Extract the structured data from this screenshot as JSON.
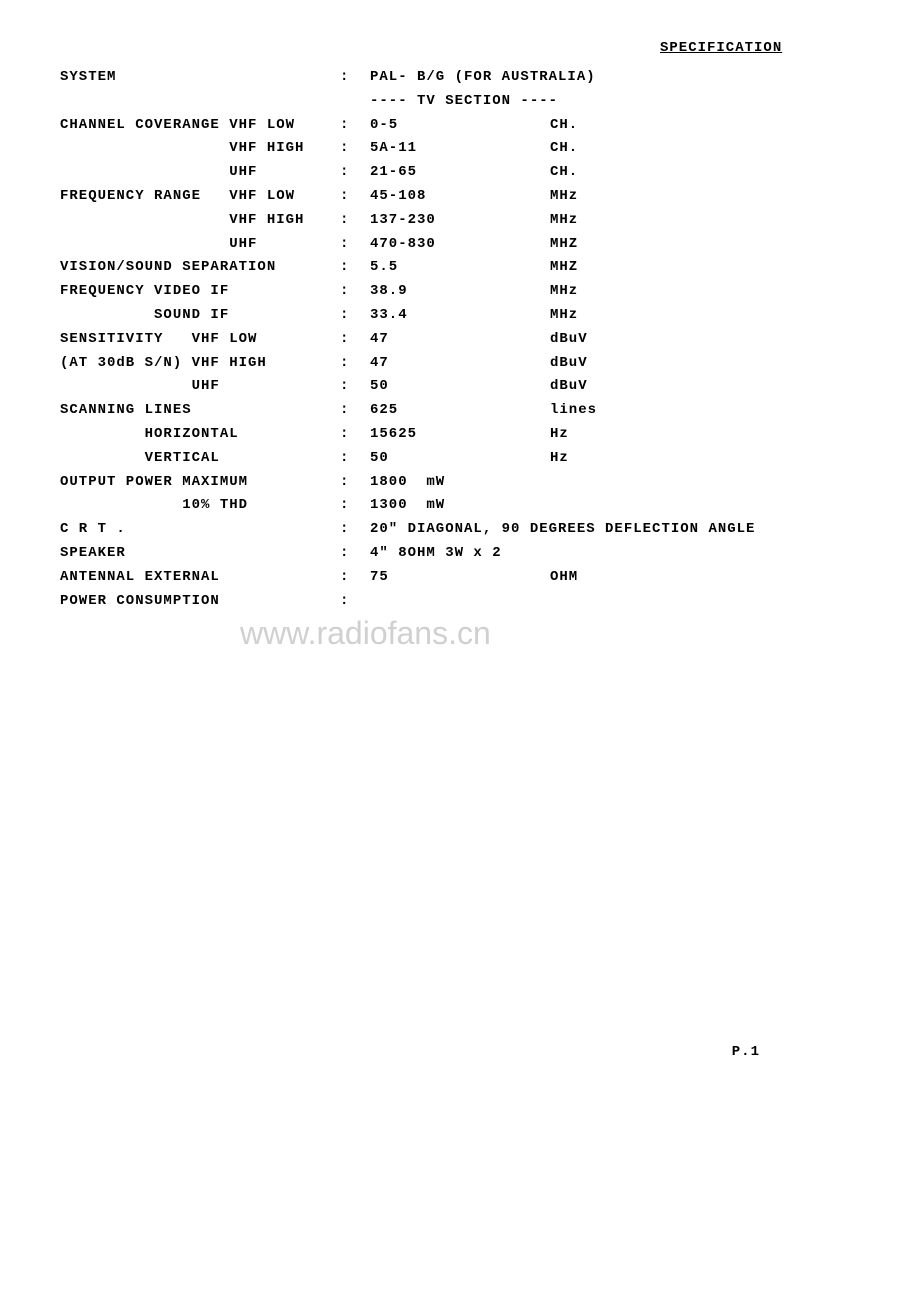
{
  "title": "SPECIFICATION",
  "section_header": "---- TV SECTION ----",
  "rows": [
    {
      "label": "SYSTEM",
      "value": "PAL- B/G (FOR AUSTRALIA)",
      "unit": ""
    },
    {
      "label": "CHANNEL COVERANGE VHF LOW",
      "value": "0-5",
      "unit": "CH."
    },
    {
      "label": "                  VHF HIGH",
      "value": "5A-11",
      "unit": "CH."
    },
    {
      "label": "                  UHF",
      "value": "21-65",
      "unit": "CH."
    },
    {
      "label": "FREQUENCY RANGE   VHF LOW",
      "value": "45-108",
      "unit": "MHz"
    },
    {
      "label": "                  VHF HIGH",
      "value": "137-230",
      "unit": "MHz"
    },
    {
      "label": "                  UHF",
      "value": "470-830",
      "unit": "MHZ"
    },
    {
      "label": "VISION/SOUND SEPARATION",
      "value": "5.5",
      "unit": "MHZ"
    },
    {
      "label": "FREQUENCY VIDEO IF",
      "value": "38.9",
      "unit": "MHz"
    },
    {
      "label": "          SOUND IF",
      "value": "33.4",
      "unit": "MHz"
    },
    {
      "label": "SENSITIVITY   VHF LOW",
      "value": "47",
      "unit": "dBuV"
    },
    {
      "label": "(AT 30dB S/N) VHF HIGH",
      "value": "47",
      "unit": "dBuV"
    },
    {
      "label": "              UHF",
      "value": "50",
      "unit": "dBuV"
    },
    {
      "label": "SCANNING LINES",
      "value": "625",
      "unit": "lines"
    },
    {
      "label": "         HORIZONTAL",
      "value": "15625",
      "unit": "Hz"
    },
    {
      "label": "         VERTICAL",
      "value": "50",
      "unit": "Hz"
    },
    {
      "label": "OUTPUT POWER MAXIMUM",
      "value": "1800  mW",
      "unit": ""
    },
    {
      "label": "             10% THD",
      "value": "1300  mW",
      "unit": ""
    },
    {
      "label": "C R T .",
      "value": "20\" DIAGONAL, 90 DEGREES DEFLECTION ANGLE",
      "unit": ""
    },
    {
      "label": "SPEAKER",
      "value": "4\" 8OHM 3W x 2",
      "unit": ""
    },
    {
      "label": "ANTENNAL EXTERNAL",
      "value": "75",
      "unit": "OHM"
    },
    {
      "label": "POWER CONSUMPTION",
      "value": "",
      "unit": ""
    }
  ],
  "watermark": "www.radiofans.cn",
  "page_number": "P.1",
  "styling": {
    "font_family": "Courier New",
    "font_size_pt": 11,
    "font_weight": "bold",
    "text_color": "#000000",
    "background_color": "#ffffff",
    "watermark_color": "#d0d0d0",
    "line_height": 1.7
  }
}
